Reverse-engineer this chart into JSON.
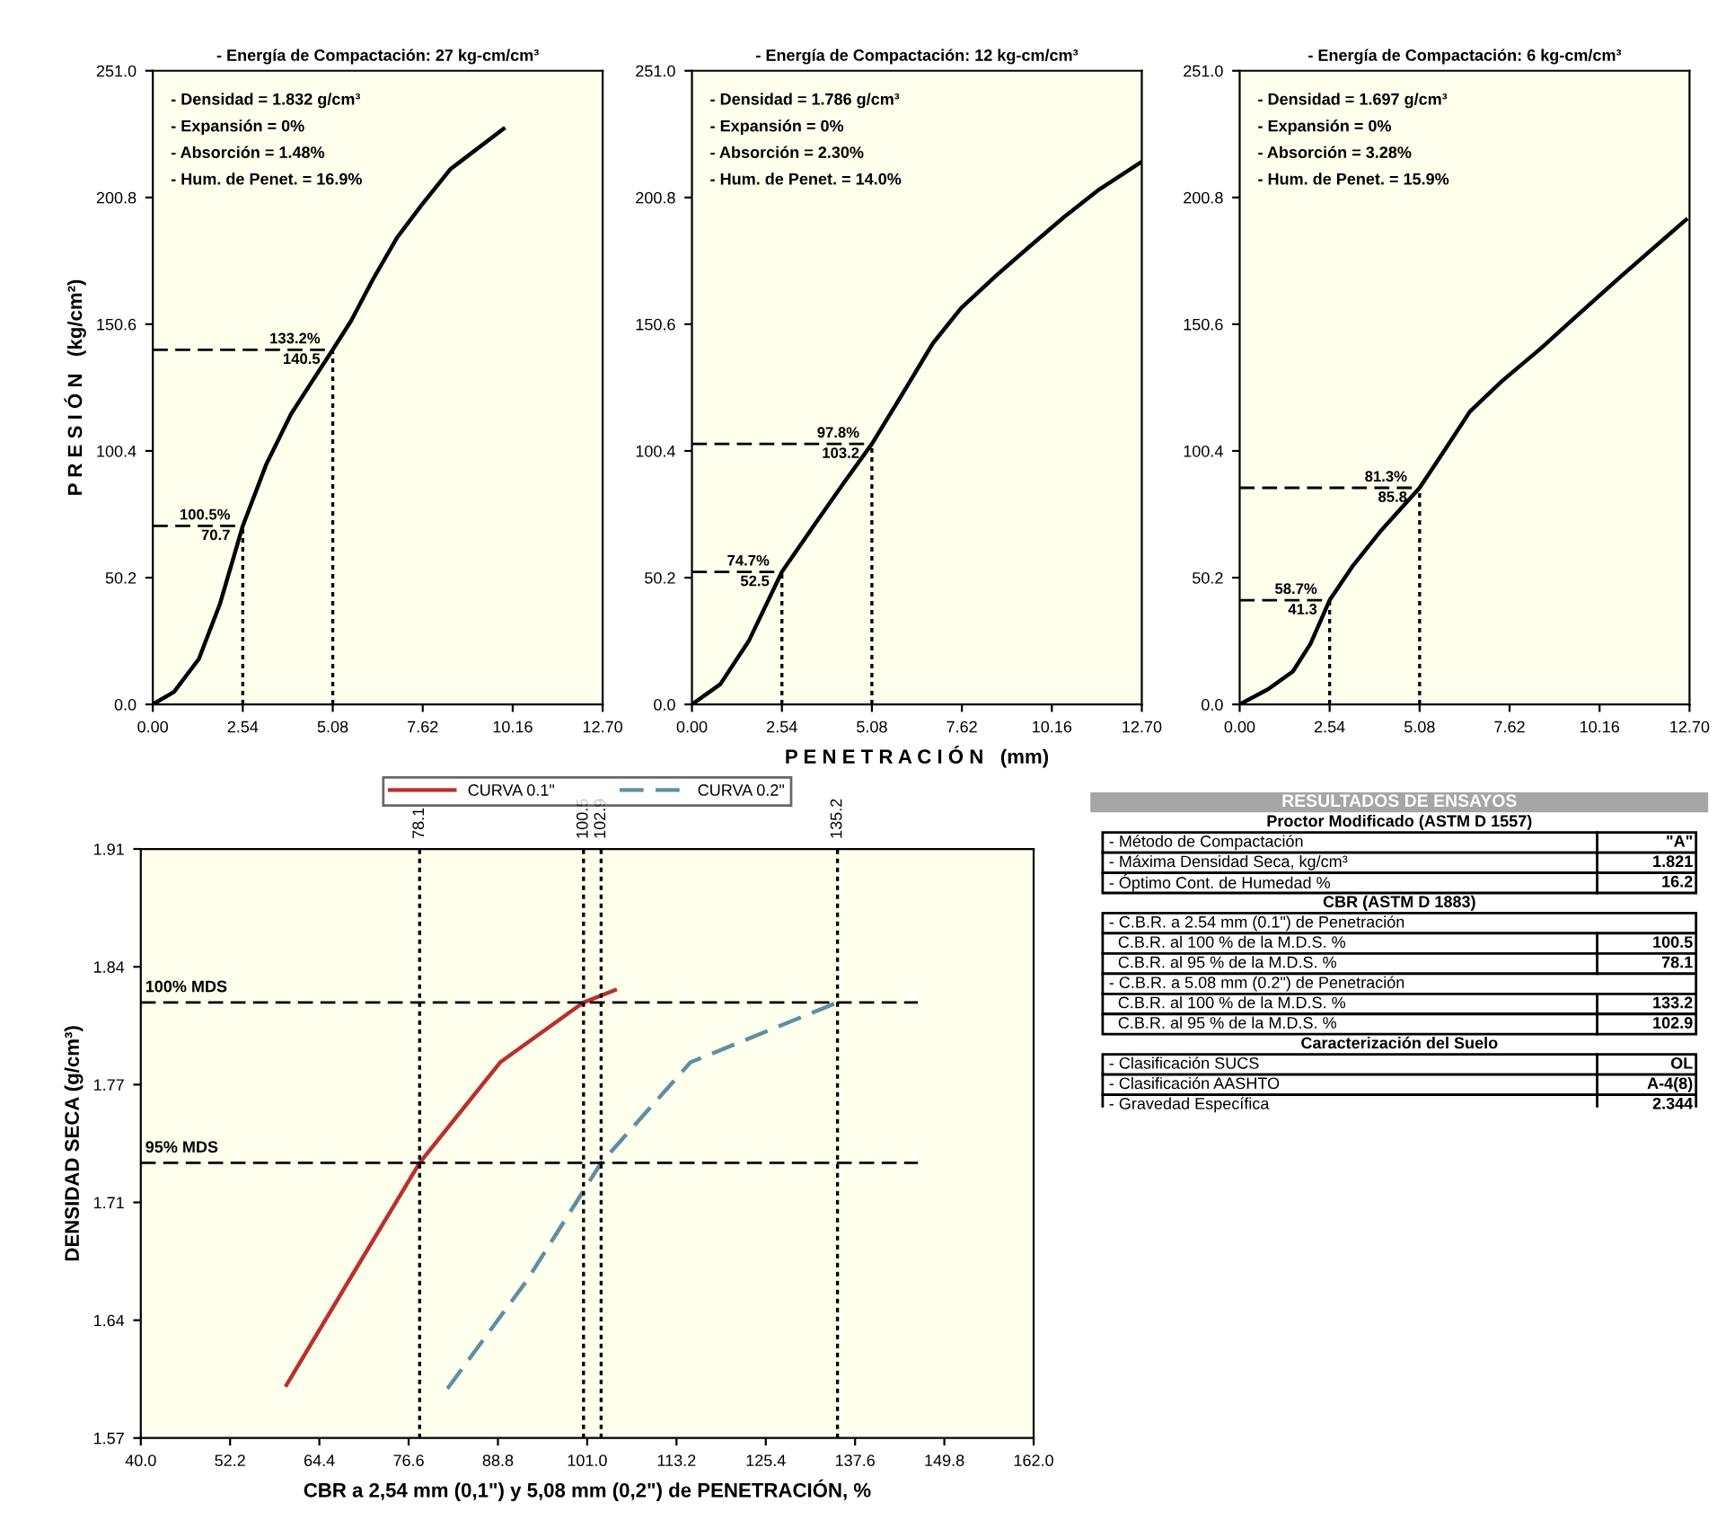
{
  "chart_data": [
    {
      "type": "line",
      "title": "- Energía de Compactación: 27 kg-cm/cm³",
      "ylabel": "P R E S I Ó N   (kg/cm²)",
      "series": [
        {
          "color": "#000000",
          "x": [
            0,
            0.6,
            1.3,
            1.9,
            2.54,
            3.2,
            3.9,
            4.5,
            5.08,
            5.6,
            6.2,
            6.9,
            7.6,
            8.4,
            9.9
          ],
          "values": [
            0,
            5,
            18,
            40,
            70.7,
            95,
            115,
            128,
            140.5,
            152,
            168,
            185,
            198,
            212,
            228
          ]
        }
      ],
      "xlim": [
        0,
        12.7
      ],
      "ylim": [
        0,
        251
      ],
      "xticks": [
        {
          "value": 0,
          "label": "0.00"
        },
        2.54,
        5.08,
        7.62,
        10.16,
        {
          "value": 12.7,
          "label": "12.70"
        }
      ],
      "yticks": [
        {
          "value": 0,
          "label": "0.0"
        },
        50.2,
        100.4,
        150.6,
        200.8,
        {
          "value": 251,
          "label": "251.0"
        }
      ],
      "ref_lines": [
        {
          "axis": "y",
          "value": 70.7,
          "label": "100.5%\n70.7",
          "line_style": "dashed"
        },
        {
          "axis": "x",
          "value": 2.54,
          "line_style": "dotted"
        },
        {
          "axis": "y",
          "value": 140.5,
          "label": "133.2%\n140.5",
          "line_style": "dashed"
        },
        {
          "axis": "x",
          "value": 5.08,
          "line_style": "dotted"
        }
      ],
      "annotations": [
        "- Densidad = 1.832 g/cm³",
        "- Expansión = 0%",
        "- Absorción = 1.48%",
        "- Hum. de Penet. = 16.9%"
      ]
    },
    {
      "type": "line",
      "title": "- Energía de Compactación: 12 kg-cm/cm³",
      "xlabel": "P E N E T R A C I Ó N   (mm)",
      "series": [
        {
          "color": "#000000",
          "x": [
            0,
            0.8,
            1.6,
            2.54,
            3.5,
            4.3,
            5.08,
            5.9,
            6.8,
            7.6,
            8.6,
            9.5,
            10.5,
            11.5,
            12.7
          ],
          "values": [
            0,
            8,
            25,
            52.5,
            72,
            88,
            103.2,
            122,
            143,
            157,
            170,
            181,
            193,
            204,
            215
          ]
        }
      ],
      "xlim": [
        0,
        12.7
      ],
      "ylim": [
        0,
        251
      ],
      "xticks": [
        {
          "value": 0,
          "label": "0.00"
        },
        2.54,
        5.08,
        7.62,
        10.16,
        {
          "value": 12.7,
          "label": "12.70"
        }
      ],
      "yticks": [
        {
          "value": 0,
          "label": "0.0"
        },
        50.2,
        100.4,
        150.6,
        200.8,
        {
          "value": 251,
          "label": "251.0"
        }
      ],
      "ref_lines": [
        {
          "axis": "y",
          "value": 52.5,
          "label": "74.7%\n52.5",
          "line_style": "dashed"
        },
        {
          "axis": "x",
          "value": 2.54,
          "line_style": "dotted"
        },
        {
          "axis": "y",
          "value": 103.2,
          "label": "97.8%\n103.2",
          "line_style": "dashed"
        },
        {
          "axis": "x",
          "value": 5.08,
          "line_style": "dotted"
        }
      ],
      "annotations": [
        "- Densidad = 1.786 g/cm³",
        "- Expansión = 0%",
        "- Absorción = 2.30%",
        "- Hum. de Penet. = 14.0%"
      ]
    },
    {
      "type": "line",
      "title": "- Energía de Compactación: 6 kg-cm/cm³",
      "series": [
        {
          "color": "#000000",
          "x": [
            0,
            0.8,
            1.5,
            2.0,
            2.54,
            3.2,
            4.0,
            5.08,
            5.8,
            6.5,
            7.4,
            8.5,
            9.6,
            10.8,
            12.6
          ],
          "values": [
            0,
            6,
            13,
            24,
            41.3,
            55,
            69,
            85.8,
            101,
            116,
            128,
            141,
            155,
            170,
            192
          ]
        }
      ],
      "xlim": [
        0,
        12.7
      ],
      "ylim": [
        0,
        251
      ],
      "xticks": [
        {
          "value": 0,
          "label": "0.00"
        },
        2.54,
        5.08,
        7.62,
        10.16,
        {
          "value": 12.7,
          "label": "12.70"
        }
      ],
      "yticks": [
        {
          "value": 0,
          "label": "0.0"
        },
        50.2,
        100.4,
        150.6,
        200.8,
        {
          "value": 251,
          "label": "251.0"
        }
      ],
      "ref_lines": [
        {
          "axis": "y",
          "value": 41.3,
          "label": "58.7%\n41.3",
          "line_style": "dashed"
        },
        {
          "axis": "x",
          "value": 2.54,
          "line_style": "dotted"
        },
        {
          "axis": "y",
          "value": 85.8,
          "label": "81.3%\n85.8",
          "line_style": "dashed"
        },
        {
          "axis": "x",
          "value": 5.08,
          "line_style": "dotted"
        }
      ],
      "annotations": [
        "- Densidad = 1.697 g/cm³",
        "- Expansión = 0%",
        "- Absorción = 3.28%",
        "- Hum. de Penet. = 15.9%"
      ]
    },
    {
      "type": "line",
      "xlabel": "CBR a 2,54 mm (0,1\") y 5,08 mm (0,2\") de PENETRACIÓN, %",
      "ylabel": "DENSIDAD SECA (g/cm³)",
      "legend": "top",
      "series": [
        {
          "name": "CURVA 0.1\"",
          "color": "#b8312f",
          "line_style": "solid",
          "x": [
            59.9,
            68.4,
            78.1,
            89.1,
            100.5,
            104.8
          ],
          "values": [
            1.604,
            1.663,
            1.73,
            1.787,
            1.821,
            1.828
          ]
        },
        {
          "name": "CURVA 0.2\"",
          "color": "#5f8fa0",
          "line_style": "dashed",
          "x": [
            81.9,
            92.7,
            102.9,
            115.1,
            135.2
          ],
          "values": [
            1.602,
            1.663,
            1.73,
            1.787,
            1.821
          ]
        }
      ],
      "xlim": [
        40,
        162
      ],
      "ylim": [
        1.574,
        1.908
      ],
      "xticks": [
        {
          "value": 40,
          "label": "40.0"
        },
        52.2,
        64.4,
        76.6,
        88.8,
        {
          "value": 101,
          "label": "101.0"
        },
        113.2,
        125.4,
        137.6,
        149.8,
        {
          "value": 162,
          "label": "162.0"
        }
      ],
      "yticks": [
        {
          "value": 1.574,
          "label": "1.57"
        },
        {
          "value": 1.6408,
          "label": "1.64"
        },
        {
          "value": 1.7076,
          "label": "1.71"
        },
        {
          "value": 1.7744,
          "label": "1.77"
        },
        {
          "value": 1.8412,
          "label": "1.84"
        },
        {
          "value": 1.908,
          "label": "1.91"
        }
      ],
      "ref_lines": [
        {
          "axis": "y",
          "value": 1.821,
          "label": "100% MDS",
          "line_style": "dashed"
        },
        {
          "axis": "y",
          "value": 1.73,
          "label": "95% MDS",
          "line_style": "dashed"
        },
        {
          "axis": "x",
          "value": 78.1,
          "label": "78.1",
          "line_style": "dotted"
        },
        {
          "axis": "x",
          "value": 100.5,
          "label": "100.5",
          "line_style": "dotted"
        },
        {
          "axis": "x",
          "value": 102.9,
          "label": "102.9",
          "line_style": "dotted"
        },
        {
          "axis": "x",
          "value": 135.2,
          "label": "135.2",
          "line_style": "dotted"
        }
      ]
    },
    {
      "type": "other",
      "title": "RESULTADOS DE ENSAYOS",
      "subtitle": "Proctor Modificado (ASTM D 1557)",
      "categories": [
        "- Método de Compactación",
        "- Máxima Densidad Seca, kg/cm³",
        "- Óptimo Cont. de Humedad %"
      ],
      "value_labels": [
        "\"A\"",
        "1.821",
        "16.2"
      ]
    },
    {
      "type": "other",
      "title": "CBR (ASTM D 1883)",
      "categories": [
        "- C.B.R. a 2.54 mm (0.1\") de Penetración",
        "  C.B.R. al 100 % de la M.D.S. %",
        "  C.B.R. al 95 % de la M.D.S. %",
        "- C.B.R. a 5.08 mm (0.2\") de Penetración",
        "  C.B.R. al 100 % de la M.D.S. %",
        "  C.B.R. al 95 % de la M.D.S. %"
      ],
      "value_labels": [
        null,
        "100.5",
        "78.1",
        null,
        "133.2",
        "102.9"
      ]
    },
    {
      "type": "other",
      "title": "Caracterización del Suelo",
      "categories": [
        "- Clasificación SUCS",
        "- Clasificación AASHTO",
        "- Gravedad Específica"
      ],
      "value_labels": [
        "OL",
        "A-4(8)",
        "2.344"
      ]
    }
  ]
}
